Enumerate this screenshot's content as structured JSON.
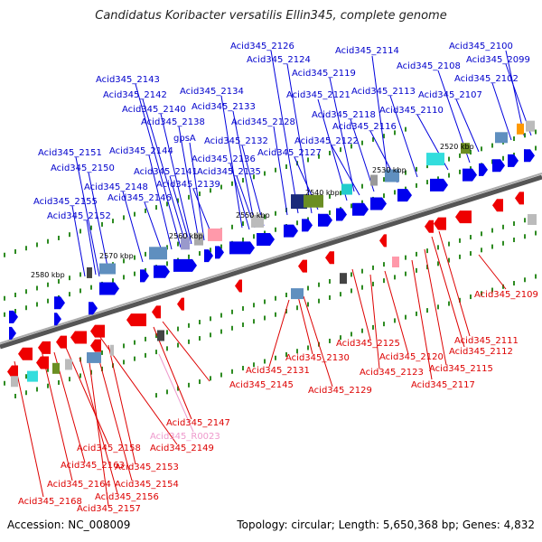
{
  "title": "Candidatus Koribacter versatilis Ellin345, complete genome",
  "footer": {
    "accession": "Accession: NC_008009",
    "topology": "Topology: circular; Length: 5,650,368 bp; Genes: 4,832"
  },
  "colors": {
    "forward_label": "#0000cc",
    "reverse_label": "#dd0000",
    "rna_label": "#ee99cc",
    "forward_gene": "#0000ee",
    "reverse_gene": "#ee0000",
    "axis": "#777777",
    "tick": "#228b22"
  },
  "kbp_ticks": [
    "2520 kbp",
    "2530 kbp",
    "2540 kbp",
    "2550 kbp",
    "2560 kbp",
    "2570 kbp",
    "2580 kbp"
  ],
  "forward_labels": [
    "Acid345_2126",
    "Acid345_2114",
    "Acid345_2100",
    "Acid345_2124",
    "Acid345_2099",
    "Acid345_2119",
    "Acid345_2108",
    "Acid345_2143",
    "Acid345_2102",
    "Acid345_2134",
    "Acid345_2113",
    "Acid345_2142",
    "Acid345_2121",
    "Acid345_2107",
    "Acid345_2140",
    "Acid345_2133",
    "Acid345_2118",
    "Acid345_2110",
    "Acid345_2138",
    "Acid345_2128",
    "Acid345_2116",
    "gpsA",
    "Acid345_2132",
    "Acid345_2122",
    "Acid345_2151",
    "Acid345_2144",
    "Acid345_2127",
    "Acid345_2136",
    "Acid345_2150",
    "Acid345_2141",
    "Acid345_2135",
    "Acid345_2148",
    "Acid345_2139",
    "Acid345_2146",
    "Acid345_2155",
    "Acid345_2152"
  ],
  "reverse_labels": [
    "Acid345_2109",
    "Acid345_2111",
    "Acid345_2112",
    "Acid345_2125",
    "Acid345_2130",
    "Acid345_2120",
    "Acid345_2115",
    "Acid345_2131",
    "Acid345_2123",
    "Acid345_2117",
    "Acid345_2129",
    "Acid345_2145",
    "Acid345_2147",
    "Acid345_2158",
    "Acid345_2149",
    "Acid345_2163",
    "Acid345_2153",
    "Acid345_2164",
    "Acid345_2154",
    "Acid345_2156",
    "Acid345_2168",
    "Acid345_2157"
  ],
  "rna_labels": [
    "Acid345_R0023"
  ]
}
